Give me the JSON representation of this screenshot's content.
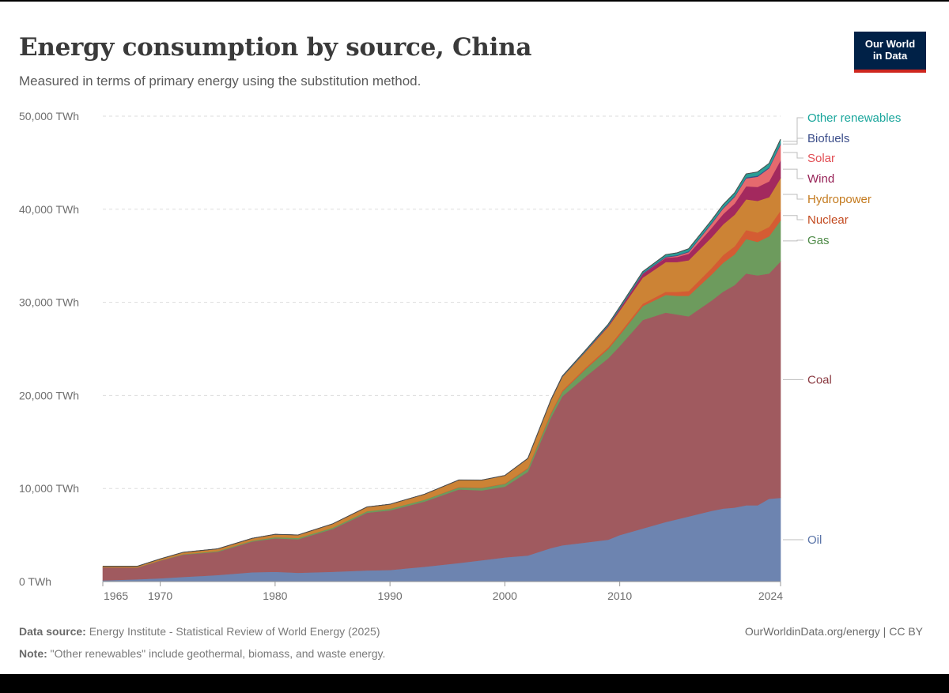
{
  "header": {
    "title": "Energy consumption by source, China",
    "subtitle": "Measured in terms of primary energy using the substitution method."
  },
  "logo": {
    "line1": "Our World",
    "line2": "in Data",
    "bg_color": "#002147",
    "accent_color": "#ce261e"
  },
  "footer": {
    "source_label": "Data source:",
    "source_text": "Energy Institute - Statistical Review of World Energy (2025)",
    "note_label": "Note:",
    "note_text": "\"Other renewables\" include geothermal, biomass, and waste energy.",
    "url": "OurWorldinData.org/energy | CC BY"
  },
  "chart_data": {
    "type": "area",
    "stacked": true,
    "title": "Energy consumption by source, China",
    "ylabel": "TWh",
    "ylim": [
      0,
      50000
    ],
    "yticks": [
      0,
      10000,
      20000,
      30000,
      40000,
      50000
    ],
    "ytick_labels": [
      "0 TWh",
      "10,000 TWh",
      "20,000 TWh",
      "30,000 TWh",
      "40,000 TWh",
      "50,000 TWh"
    ],
    "xlim": [
      1965,
      2024
    ],
    "xticks": [
      1965,
      1970,
      1980,
      1990,
      2000,
      2010,
      2024
    ],
    "xtick_labels": [
      "1965",
      "1970",
      "1980",
      "1990",
      "2000",
      "2010",
      "2024"
    ],
    "x": [
      1965,
      1968,
      1970,
      1972,
      1975,
      1978,
      1980,
      1982,
      1985,
      1988,
      1990,
      1993,
      1996,
      1998,
      2000,
      2002,
      2004,
      2005,
      2007,
      2009,
      2010,
      2012,
      2014,
      2015,
      2016,
      2018,
      2019,
      2020,
      2021,
      2022,
      2023,
      2024
    ],
    "series": [
      {
        "name": "Oil",
        "color": "#6d84b0",
        "values": [
          130,
          250,
          350,
          500,
          700,
          1000,
          1050,
          950,
          1050,
          1200,
          1250,
          1600,
          2000,
          2300,
          2600,
          2800,
          3600,
          3900,
          4200,
          4500,
          5000,
          5700,
          6400,
          6700,
          7000,
          7600,
          7850,
          7950,
          8200,
          8200,
          8900,
          9000
        ]
      },
      {
        "name": "Coal",
        "color": "#a05a5f",
        "values": [
          1400,
          1250,
          1900,
          2400,
          2500,
          3300,
          3600,
          3600,
          4600,
          6200,
          6400,
          7000,
          7900,
          7500,
          7600,
          9000,
          14000,
          16000,
          17800,
          19500,
          20300,
          22400,
          22500,
          22000,
          21500,
          22600,
          23300,
          23900,
          24900,
          24700,
          24200,
          25400
        ]
      },
      {
        "name": "Gas",
        "color": "#6d9b5d",
        "values": [
          10,
          20,
          30,
          50,
          80,
          100,
          130,
          140,
          150,
          170,
          180,
          200,
          230,
          270,
          300,
          350,
          420,
          500,
          800,
          1000,
          1200,
          1500,
          1900,
          2000,
          2200,
          2800,
          3100,
          3300,
          3700,
          3600,
          4000,
          4400
        ]
      },
      {
        "name": "Nuclear",
        "color": "#d45c33",
        "values": [
          0,
          0,
          0,
          0,
          0,
          0,
          0,
          0,
          0,
          0,
          0,
          5,
          40,
          40,
          50,
          70,
          130,
          140,
          160,
          190,
          210,
          250,
          330,
          430,
          520,
          700,
          830,
          870,
          970,
          1000,
          1000,
          1050
        ]
      },
      {
        "name": "Hydropower",
        "color": "#cc8335",
        "values": [
          110,
          130,
          160,
          200,
          240,
          250,
          300,
          320,
          400,
          450,
          480,
          580,
          750,
          800,
          850,
          1000,
          1300,
          1450,
          1700,
          2200,
          2400,
          2800,
          3200,
          3200,
          3300,
          3300,
          3300,
          3400,
          3300,
          3400,
          3200,
          3500
        ]
      },
      {
        "name": "Wind",
        "color": "#a3295e",
        "values": [
          0,
          0,
          0,
          0,
          0,
          0,
          0,
          0,
          0,
          0,
          0,
          0,
          0,
          0,
          2,
          5,
          8,
          10,
          40,
          100,
          200,
          400,
          450,
          550,
          700,
          1000,
          1100,
          1200,
          1400,
          1500,
          1700,
          1900
        ]
      },
      {
        "name": "Solar",
        "color": "#e56a6e",
        "values": [
          0,
          0,
          0,
          0,
          0,
          0,
          0,
          0,
          0,
          0,
          0,
          0,
          0,
          0,
          0,
          0,
          0,
          0,
          0,
          1,
          3,
          15,
          60,
          120,
          180,
          450,
          600,
          700,
          850,
          1100,
          1400,
          1700
        ]
      },
      {
        "name": "Biofuels",
        "color": "#3c4e8a",
        "values": [
          0,
          0,
          0,
          0,
          0,
          0,
          0,
          0,
          0,
          0,
          0,
          0,
          0,
          0,
          0,
          5,
          15,
          20,
          30,
          40,
          50,
          60,
          70,
          75,
          80,
          90,
          95,
          100,
          100,
          110,
          110,
          120
        ]
      },
      {
        "name": "Other renewables",
        "color": "#2a9d95",
        "values": [
          0,
          0,
          0,
          0,
          0,
          0,
          0,
          0,
          0,
          0,
          0,
          0,
          0,
          0,
          0,
          10,
          40,
          60,
          100,
          130,
          150,
          180,
          220,
          250,
          280,
          300,
          320,
          350,
          380,
          400,
          420,
          450
        ]
      }
    ],
    "legend": {
      "position": "right",
      "label_colors": {
        "Oil": "#5a74a8",
        "Coal": "#8b3b42",
        "Gas": "#4e8a47",
        "Nuclear": "#c2491e",
        "Hydropower": "#c47a1e",
        "Wind": "#962156",
        "Solar": "#e24f55",
        "Biofuels": "#3c4e8a",
        "Other renewables": "#18a59b"
      }
    }
  }
}
